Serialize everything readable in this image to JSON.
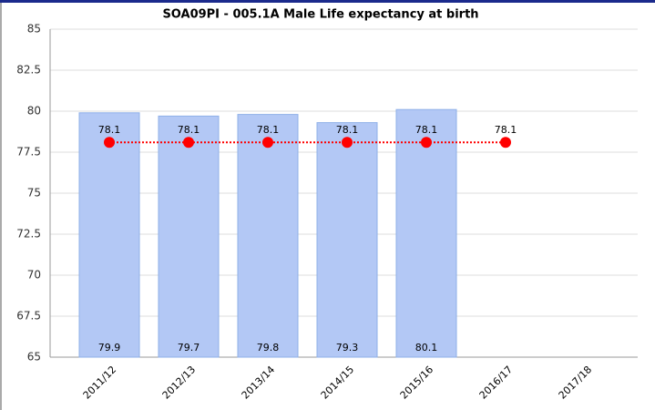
{
  "chart_data": {
    "type": "bar",
    "title": "SOA09PI - 005.1A Male Life expectancy at birth",
    "categories": [
      "2011/12",
      "2012/13",
      "2013/14",
      "2014/15",
      "2015/16",
      "2016/17",
      "2017/18"
    ],
    "series": [
      {
        "type": "bar",
        "color": "#b3c8f5",
        "values": [
          79.9,
          79.7,
          79.8,
          79.3,
          80.1,
          null,
          null
        ]
      },
      {
        "type": "line",
        "color": "#ff0000",
        "values": [
          78.1,
          78.1,
          78.1,
          78.1,
          78.1,
          78.1,
          null
        ]
      }
    ],
    "ylim": [
      65,
      85
    ],
    "yticks": [
      65,
      67.5,
      70,
      72.5,
      75,
      77.5,
      80,
      82.5,
      85
    ],
    "grid": true
  }
}
